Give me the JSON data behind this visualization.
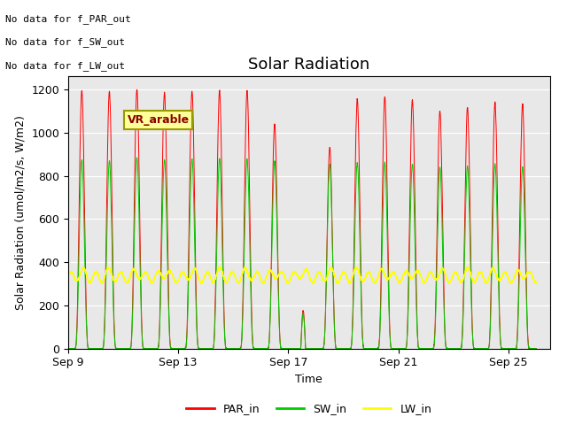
{
  "title": "Solar Radiation",
  "ylabel": "Solar Radiation (umol/m2/s, W/m2)",
  "xlabel": "Time",
  "ylim": [
    0,
    1260
  ],
  "bg_color": "#e8e8e8",
  "title_fontsize": 13,
  "label_fontsize": 9,
  "tick_fontsize": 9,
  "annotations": [
    "No data for f_PAR_out",
    "No data for f_SW_out",
    "No data for f_LW_out"
  ],
  "box_label": "VR_arable",
  "legend_labels": [
    "PAR_in",
    "SW_in",
    "LW_in"
  ],
  "legend_colors": [
    "#ff0000",
    "#00cc00",
    "#ffff00"
  ],
  "tick_positions": [
    0,
    4,
    8,
    12,
    16
  ],
  "tick_labels": [
    "Sep 9",
    "Sep 13",
    "Sep 17",
    "Sep 21",
    "Sep 25"
  ],
  "xlim": [
    0,
    17.5
  ],
  "n_days": 17,
  "pts_per_day": 288,
  "par_peaks": [
    1195,
    1190,
    1200,
    1185,
    1190,
    1195,
    1195,
    1040,
    175,
    930,
    1155,
    1165,
    1150,
    1100,
    1115,
    1140,
    1130
  ],
  "sw_peaks": [
    875,
    870,
    885,
    875,
    878,
    880,
    878,
    870,
    160,
    855,
    860,
    862,
    855,
    840,
    845,
    855,
    840
  ],
  "lw_base": 330,
  "lw_amplitude": 25,
  "lw_wave_period": 0.45
}
